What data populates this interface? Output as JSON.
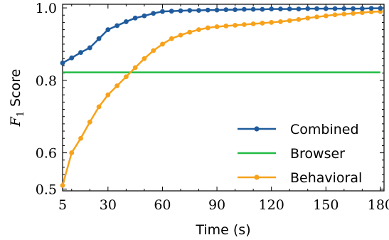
{
  "chart_data": {
    "type": "line",
    "xlabel": "Time (s)",
    "ylabel": "F₁ Score",
    "ylabel_main": "F",
    "ylabel_sub": "1",
    "ylabel_rest": "Score",
    "xlim": [
      5,
      182
    ],
    "ylim": [
      0.495,
      1.01
    ],
    "xticks": [
      5,
      30,
      60,
      90,
      120,
      150,
      180
    ],
    "xtick_labels": [
      "5",
      "30",
      "60",
      "90",
      "120",
      "150",
      "180"
    ],
    "yticks": [
      0.5,
      0.6,
      0.8,
      1.0
    ],
    "ytick_labels": [
      "0.5",
      "0.6",
      "0.8",
      "1.0"
    ],
    "legend_position": "lower-right",
    "series": [
      {
        "name": "Combined",
        "color": "#1f5b9c",
        "marker": "circle",
        "x": [
          5,
          10,
          15,
          20,
          25,
          30,
          35,
          40,
          45,
          50,
          55,
          60,
          65,
          70,
          75,
          80,
          85,
          90,
          95,
          100,
          105,
          110,
          115,
          120,
          125,
          130,
          135,
          140,
          145,
          150,
          155,
          160,
          165,
          170,
          175,
          180
        ],
        "y": [
          0.848,
          0.862,
          0.877,
          0.89,
          0.915,
          0.94,
          0.951,
          0.962,
          0.972,
          0.978,
          0.985,
          0.99,
          0.991,
          0.992,
          0.993,
          0.993,
          0.994,
          0.994,
          0.995,
          0.995,
          0.996,
          0.996,
          0.996,
          0.997,
          0.997,
          0.997,
          0.997,
          0.998,
          0.998,
          0.998,
          0.998,
          0.998,
          0.998,
          0.998,
          0.999,
          0.999
        ]
      },
      {
        "name": "Browser",
        "color": "#22bb44",
        "marker": "none",
        "x": [
          5,
          180
        ],
        "y": [
          0.822,
          0.822
        ]
      },
      {
        "name": "Behavioral",
        "color": "#f7a21b",
        "marker": "circle",
        "x": [
          5,
          10,
          15,
          20,
          25,
          30,
          35,
          40,
          45,
          50,
          55,
          60,
          65,
          70,
          75,
          80,
          85,
          90,
          95,
          100,
          105,
          110,
          115,
          120,
          125,
          130,
          135,
          140,
          145,
          150,
          155,
          160,
          165,
          170,
          175,
          180
        ],
        "y": [
          0.51,
          0.6,
          0.64,
          0.685,
          0.727,
          0.76,
          0.785,
          0.81,
          0.835,
          0.86,
          0.882,
          0.9,
          0.915,
          0.925,
          0.933,
          0.94,
          0.945,
          0.948,
          0.95,
          0.952,
          0.954,
          0.956,
          0.958,
          0.96,
          0.962,
          0.965,
          0.968,
          0.972,
          0.975,
          0.978,
          0.981,
          0.983,
          0.985,
          0.987,
          0.989,
          0.99
        ]
      }
    ]
  }
}
